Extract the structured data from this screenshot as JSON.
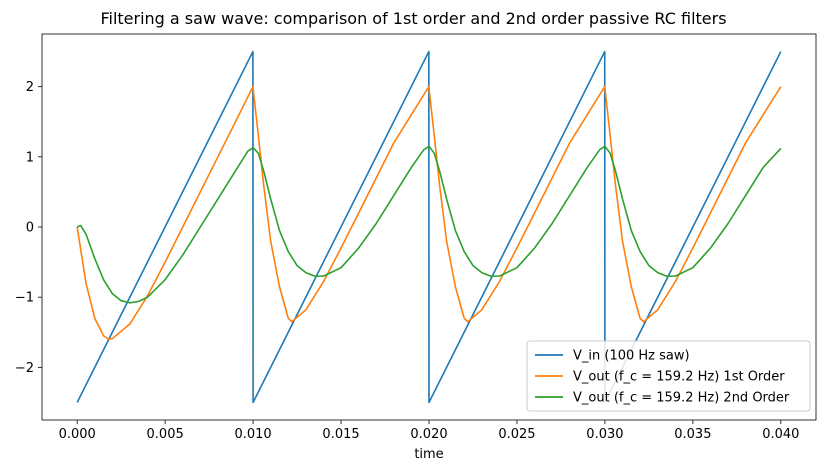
{
  "chart_data": {
    "type": "line",
    "title": "Filtering a saw wave: comparison of 1st order and 2nd order passive RC filters",
    "xlabel": "time",
    "ylabel": "",
    "xlim": [
      -0.002,
      0.042
    ],
    "ylim": [
      -2.75,
      2.75
    ],
    "x_ticks": [
      0.0,
      0.005,
      0.01,
      0.015,
      0.02,
      0.025,
      0.03,
      0.035,
      0.04
    ],
    "x_tick_labels": [
      "0.000",
      "0.005",
      "0.010",
      "0.015",
      "0.020",
      "0.025",
      "0.030",
      "0.035",
      "0.040"
    ],
    "y_ticks": [
      -2,
      -1,
      0,
      1,
      2
    ],
    "y_tick_labels": [
      "−2",
      "−1",
      "0",
      "1",
      "2"
    ],
    "grid": false,
    "legend_position": "bottom-right",
    "series": [
      {
        "name": "V_in (100 Hz saw)",
        "color": "#1f77b4",
        "x": [
          0.0,
          0.00999,
          0.01,
          0.01999,
          0.02,
          0.02999,
          0.03,
          0.04
        ],
        "y": [
          -2.5,
          2.5,
          -2.5,
          2.5,
          -2.5,
          2.5,
          -2.5,
          2.5
        ]
      },
      {
        "name": "V_out (f_c = 159.2 Hz) 1st Order",
        "color": "#ff7f0e",
        "x": [
          0.0,
          0.0005,
          0.001,
          0.0015,
          0.0018,
          0.002,
          0.003,
          0.004,
          0.005,
          0.006,
          0.007,
          0.008,
          0.009,
          0.00999,
          0.0103,
          0.0106,
          0.011,
          0.0115,
          0.012,
          0.0122,
          0.013,
          0.014,
          0.015,
          0.016,
          0.017,
          0.018,
          0.019,
          0.01999,
          0.0203,
          0.0206,
          0.021,
          0.0215,
          0.022,
          0.0222,
          0.023,
          0.024,
          0.025,
          0.026,
          0.027,
          0.028,
          0.029,
          0.02999,
          0.0303,
          0.0306,
          0.031,
          0.0315,
          0.032,
          0.0322,
          0.033,
          0.034,
          0.035,
          0.036,
          0.037,
          0.038,
          0.039,
          0.04
        ],
        "y": [
          0.0,
          -0.8,
          -1.3,
          -1.55,
          -1.6,
          -1.59,
          -1.38,
          -0.98,
          -0.5,
          0.0,
          0.5,
          1.0,
          1.5,
          2.0,
          1.3,
          0.6,
          -0.2,
          -0.85,
          -1.3,
          -1.35,
          -1.18,
          -0.78,
          -0.3,
          0.2,
          0.7,
          1.2,
          1.6,
          2.0,
          1.3,
          0.6,
          -0.2,
          -0.85,
          -1.3,
          -1.35,
          -1.18,
          -0.78,
          -0.3,
          0.2,
          0.7,
          1.2,
          1.6,
          2.0,
          1.3,
          0.6,
          -0.2,
          -0.85,
          -1.3,
          -1.35,
          -1.18,
          -0.78,
          -0.3,
          0.2,
          0.7,
          1.2,
          1.6,
          2.0
        ]
      },
      {
        "name": "V_out (f_c = 159.2 Hz) 2nd Order",
        "color": "#2ca02c",
        "x": [
          0.0,
          0.0002,
          0.0005,
          0.001,
          0.0015,
          0.002,
          0.0025,
          0.003,
          0.0035,
          0.004,
          0.005,
          0.006,
          0.007,
          0.008,
          0.009,
          0.0097,
          0.01,
          0.0103,
          0.0106,
          0.011,
          0.0115,
          0.012,
          0.0125,
          0.013,
          0.0135,
          0.014,
          0.015,
          0.016,
          0.017,
          0.018,
          0.019,
          0.0197,
          0.02,
          0.0203,
          0.0206,
          0.021,
          0.0215,
          0.022,
          0.0225,
          0.023,
          0.0235,
          0.024,
          0.025,
          0.026,
          0.027,
          0.028,
          0.029,
          0.0297,
          0.03,
          0.0303,
          0.0306,
          0.031,
          0.0315,
          0.032,
          0.0325,
          0.033,
          0.0335,
          0.034,
          0.035,
          0.036,
          0.037,
          0.038,
          0.039,
          0.04
        ],
        "y": [
          0.0,
          0.02,
          -0.1,
          -0.45,
          -0.75,
          -0.95,
          -1.05,
          -1.08,
          -1.06,
          -1.0,
          -0.75,
          -0.4,
          0.0,
          0.4,
          0.8,
          1.08,
          1.13,
          1.05,
          0.8,
          0.4,
          -0.05,
          -0.35,
          -0.55,
          -0.65,
          -0.7,
          -0.7,
          -0.58,
          -0.3,
          0.05,
          0.45,
          0.85,
          1.1,
          1.15,
          1.05,
          0.8,
          0.4,
          -0.05,
          -0.35,
          -0.55,
          -0.65,
          -0.7,
          -0.7,
          -0.58,
          -0.3,
          0.05,
          0.45,
          0.85,
          1.1,
          1.15,
          1.05,
          0.8,
          0.4,
          -0.05,
          -0.35,
          -0.55,
          -0.65,
          -0.7,
          -0.7,
          -0.58,
          -0.3,
          0.05,
          0.45,
          0.85,
          1.12
        ]
      }
    ]
  }
}
